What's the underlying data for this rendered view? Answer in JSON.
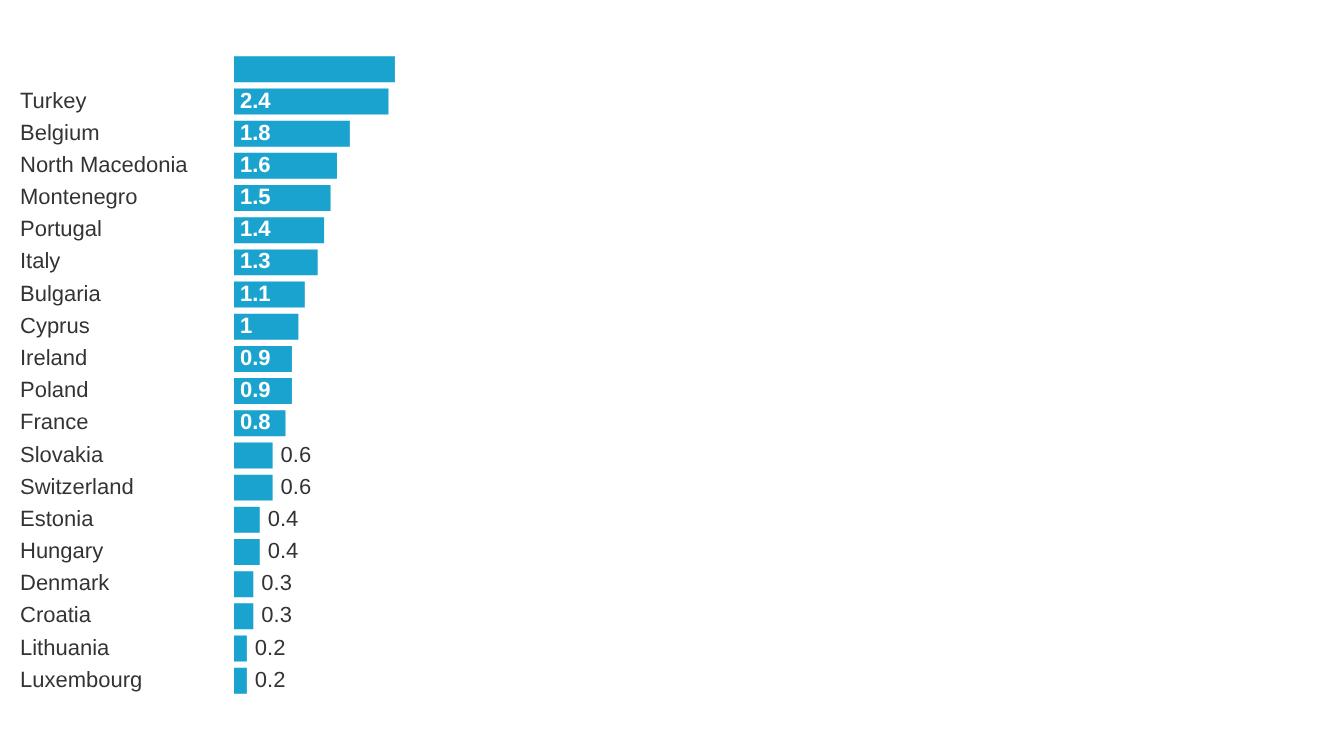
{
  "chart_data": {
    "type": "bar",
    "orientation": "horizontal",
    "categories": [
      null,
      "Turkey",
      "Belgium",
      "North Macedonia",
      "Montenegro",
      "Portugal",
      "Italy",
      "Bulgaria",
      "Cyprus",
      "Ireland",
      "Poland",
      "France",
      "Slovakia",
      "Switzerland",
      "Estonia",
      "Hungary",
      "Denmark",
      "Croatia",
      "Lithuania",
      "Luxembourg"
    ],
    "values": [
      2.5,
      2.4,
      1.8,
      1.6,
      1.5,
      1.4,
      1.3,
      1.1,
      1,
      0.9,
      0.9,
      0.8,
      0.6,
      0.6,
      0.4,
      0.4,
      0.3,
      0.3,
      0.2,
      0.2
    ],
    "value_labels": [
      null,
      "2.4",
      "1.8",
      "1.6",
      "1.5",
      "1.4",
      "1.3",
      "1.1",
      "1",
      "0.9",
      "0.9",
      "0.8",
      "0.6",
      "0.6",
      "0.4",
      "0.4",
      "0.3",
      "0.3",
      "0.2",
      "0.2"
    ],
    "color": "#1ba3cf",
    "grid": false,
    "legend": false
  }
}
